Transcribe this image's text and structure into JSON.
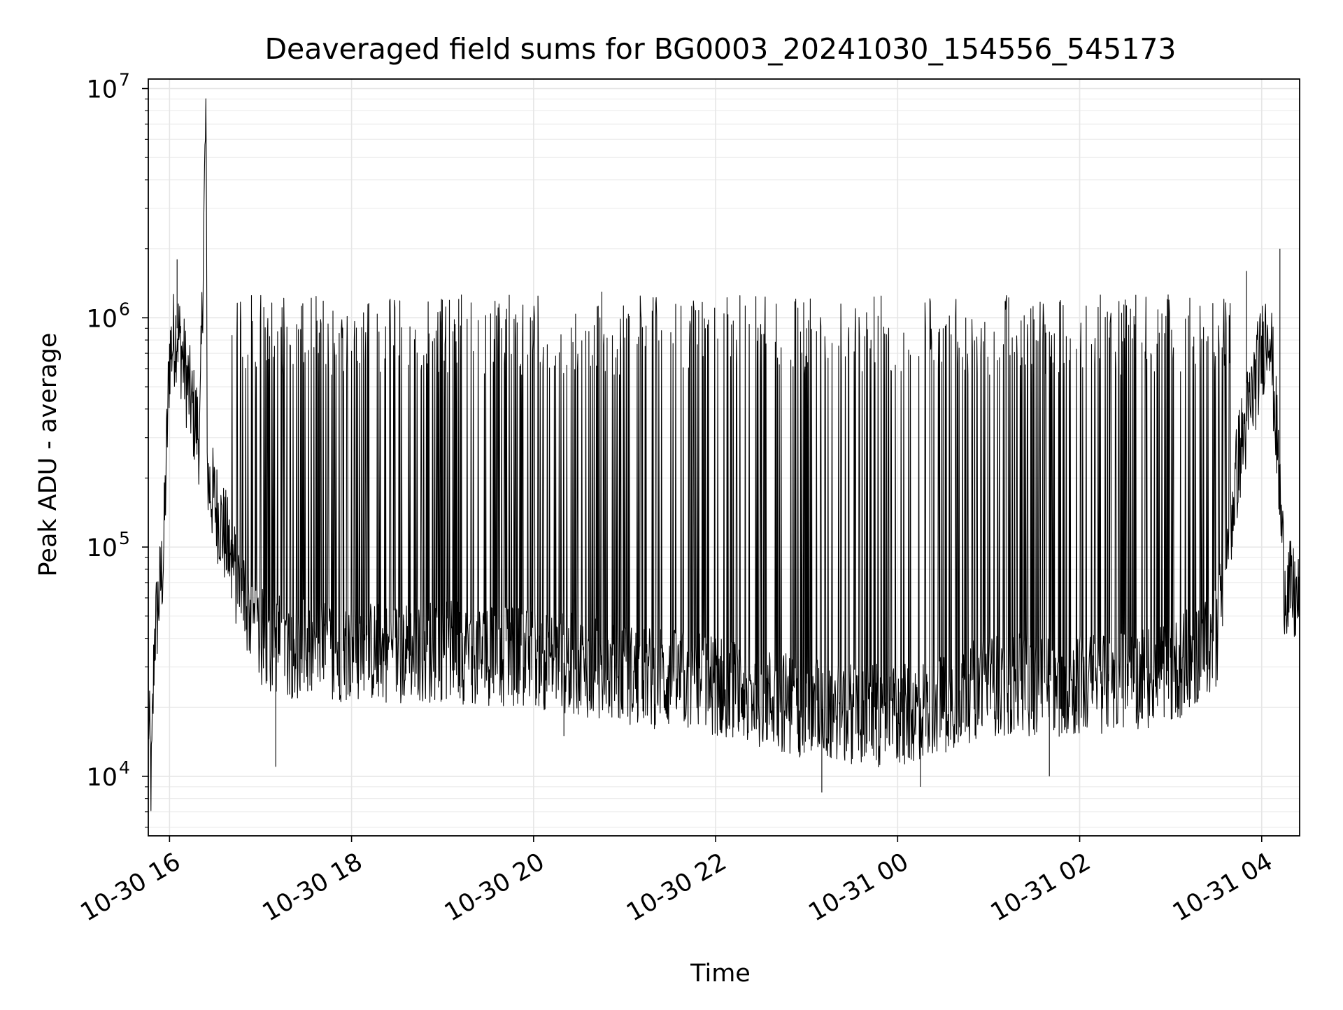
{
  "chart_data": {
    "type": "line",
    "title": "Deaveraged field sums for BG0003_20241030_154556_545173",
    "xlabel": "Time",
    "ylabel": "Peak ADU - average",
    "yscale": "log",
    "grid": true,
    "line_color": "#000000",
    "xlim": [
      "2024-10-30 15:46",
      "2024-10-31 04:25"
    ],
    "ylim": [
      5500,
      11000000
    ],
    "x_ticks": [
      {
        "t": "2024-10-30 16:00",
        "label": "10-30 16"
      },
      {
        "t": "2024-10-30 18:00",
        "label": "10-30 18"
      },
      {
        "t": "2024-10-30 20:00",
        "label": "10-30 20"
      },
      {
        "t": "2024-10-30 22:00",
        "label": "10-30 22"
      },
      {
        "t": "2024-10-31 00:00",
        "label": "10-31 00"
      },
      {
        "t": "2024-10-31 02:00",
        "label": "10-31 02"
      },
      {
        "t": "2024-10-31 04:00",
        "label": "10-31 04"
      }
    ],
    "y_ticks": [
      {
        "value": 10000,
        "base": "10",
        "exp": "4"
      },
      {
        "value": 100000,
        "base": "10",
        "exp": "5"
      },
      {
        "value": 1000000,
        "base": "10",
        "exp": "6"
      },
      {
        "value": 10000000,
        "base": "10",
        "exp": "7"
      }
    ],
    "series": [
      {
        "points": [
          [
            "2024-10-30 15:46",
            20000
          ],
          [
            "2024-10-30 15:48",
            9000
          ],
          [
            "2024-10-30 15:50",
            40000
          ],
          [
            "2024-10-30 15:53",
            60000
          ],
          [
            "2024-10-30 15:56",
            90000
          ],
          [
            "2024-10-30 16:00",
            700000
          ],
          [
            "2024-10-30 16:05",
            900000
          ],
          [
            "2024-10-30 16:10",
            600000
          ],
          [
            "2024-10-30 16:15",
            400000
          ],
          [
            "2024-10-30 16:20",
            300000
          ],
          [
            "2024-10-30 16:24",
            8000000
          ],
          [
            "2024-10-30 16:25",
            200000
          ],
          [
            "2024-10-30 16:35",
            120000
          ],
          [
            "2024-10-30 16:45",
            70000
          ],
          [
            "2024-10-30 17:00",
            40000
          ],
          [
            "2024-10-30 17:30",
            35000
          ],
          [
            "2024-10-30 18:00",
            35000
          ],
          [
            "2024-10-30 19:00",
            35000
          ],
          [
            "2024-10-30 20:00",
            33000
          ],
          [
            "2024-10-30 21:00",
            28000
          ],
          [
            "2024-10-30 22:00",
            25000
          ],
          [
            "2024-10-30 23:00",
            20000
          ],
          [
            "2024-10-31 00:00",
            18000
          ],
          [
            "2024-10-31 01:00",
            25000
          ],
          [
            "2024-10-31 02:00",
            25000
          ],
          [
            "2024-10-31 03:00",
            28000
          ],
          [
            "2024-10-31 03:30",
            40000
          ],
          [
            "2024-10-31 03:45",
            250000
          ],
          [
            "2024-10-31 04:05",
            1000000
          ],
          [
            "2024-10-31 04:10",
            300000
          ],
          [
            "2024-10-31 04:15",
            70000
          ],
          [
            "2024-10-31 04:25",
            55000
          ]
        ],
        "peaks": [
          [
            "2024-10-30 16:24",
            8000000
          ],
          [
            "2024-10-30 16:05",
            1800000
          ],
          [
            "2024-10-31 04:12",
            2000000
          ],
          [
            "2024-10-30 20:45",
            1300000
          ],
          [
            "2024-10-31 03:50",
            1600000
          ],
          [
            "2024-10-30 23:00",
            900000
          ],
          [
            "2024-10-31 00:30",
            900000
          ],
          [
            "2024-10-31 02:30",
            1200000
          ]
        ],
        "troughs": [
          [
            "2024-10-30 17:10",
            11000
          ],
          [
            "2024-10-30 23:10",
            8500
          ],
          [
            "2024-10-31 00:15",
            9000
          ],
          [
            "2024-10-31 01:40",
            10000
          ],
          [
            "2024-10-30 20:20",
            15000
          ]
        ]
      }
    ]
  }
}
